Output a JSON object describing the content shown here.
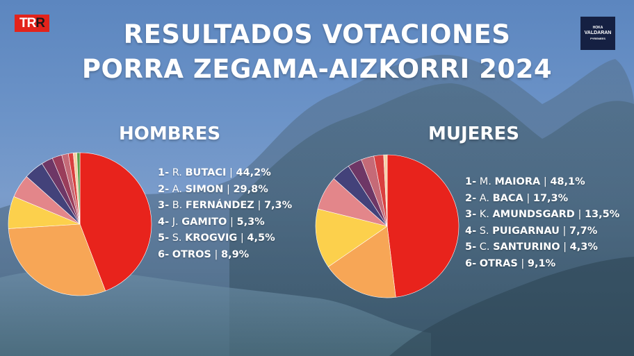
{
  "header": {
    "title_line1": "RESULTADOS VOTACIONES",
    "title_line2": "PORRA ZEGAMA-AIZKORRI 2024"
  },
  "logos": {
    "left": {
      "part1": "TR",
      "part2": "R"
    },
    "right": {
      "line1": "HOKA",
      "line2": "VALDARAN",
      "line3": "PYRENEES"
    }
  },
  "chart_data": [
    {
      "type": "pie",
      "title": "HOMBRES",
      "legend": [
        {
          "rank": "1-",
          "initial": "R.",
          "name": "BUTACI",
          "sep": "|",
          "value": "44,2%"
        },
        {
          "rank": "2-",
          "initial": "A.",
          "name": "SIMON",
          "sep": "|",
          "value": "29,8%"
        },
        {
          "rank": "3-",
          "initial": "B.",
          "name": "FERNÁNDEZ",
          "sep": "|",
          "value": "7,3%"
        },
        {
          "rank": "4-",
          "initial": "J.",
          "name": "GAMITO",
          "sep": "|",
          "value": "5,3%"
        },
        {
          "rank": "5-",
          "initial": "S.",
          "name": "KROGVIG",
          "sep": "|",
          "value": "4,5%"
        },
        {
          "rank": "6-",
          "initial": "",
          "name": "OTROS",
          "sep": "|",
          "value": "8,9%"
        }
      ],
      "slices": [
        {
          "value": 44.2,
          "color": "#e8231c"
        },
        {
          "value": 29.8,
          "color": "#f7a656"
        },
        {
          "value": 7.3,
          "color": "#fcd04c"
        },
        {
          "value": 5.3,
          "color": "#e3868a"
        },
        {
          "value": 4.5,
          "color": "#43427a"
        },
        {
          "value": 2.6,
          "color": "#6e3766"
        },
        {
          "value": 2.2,
          "color": "#9a3d5b"
        },
        {
          "value": 1.5,
          "color": "#c56a77"
        },
        {
          "value": 1.1,
          "color": "#d93f3f"
        },
        {
          "value": 0.8,
          "color": "#f5cfa6"
        },
        {
          "value": 0.7,
          "color": "#5aa04a"
        }
      ],
      "start_angle_deg": 0
    },
    {
      "type": "pie",
      "title": "MUJERES",
      "legend": [
        {
          "rank": "1-",
          "initial": "M.",
          "name": "MAIORA",
          "sep": "|",
          "value": "48,1%"
        },
        {
          "rank": "2-",
          "initial": "A.",
          "name": "BACA",
          "sep": "|",
          "value": "17,3%"
        },
        {
          "rank": "3-",
          "initial": "K.",
          "name": "AMUNDSGARD",
          "sep": "|",
          "value": "13,5%"
        },
        {
          "rank": "4-",
          "initial": "S.",
          "name": "PUIGARNAU",
          "sep": "|",
          "value": "7,7%"
        },
        {
          "rank": "5-",
          "initial": "C.",
          "name": "SANTURINO",
          "sep": "|",
          "value": "4,3%"
        },
        {
          "rank": "6-",
          "initial": "",
          "name": "OTRAS",
          "sep": "|",
          "value": "9,1%"
        }
      ],
      "slices": [
        {
          "value": 48.1,
          "color": "#e8231c"
        },
        {
          "value": 17.3,
          "color": "#f7a656"
        },
        {
          "value": 13.5,
          "color": "#fcd04c"
        },
        {
          "value": 7.7,
          "color": "#e3868a"
        },
        {
          "value": 4.3,
          "color": "#43427a"
        },
        {
          "value": 3.2,
          "color": "#6e3766"
        },
        {
          "value": 2.9,
          "color": "#c56a77"
        },
        {
          "value": 2.2,
          "color": "#d93f3f"
        },
        {
          "value": 0.8,
          "color": "#f5cfa6"
        }
      ],
      "start_angle_deg": 0
    }
  ]
}
